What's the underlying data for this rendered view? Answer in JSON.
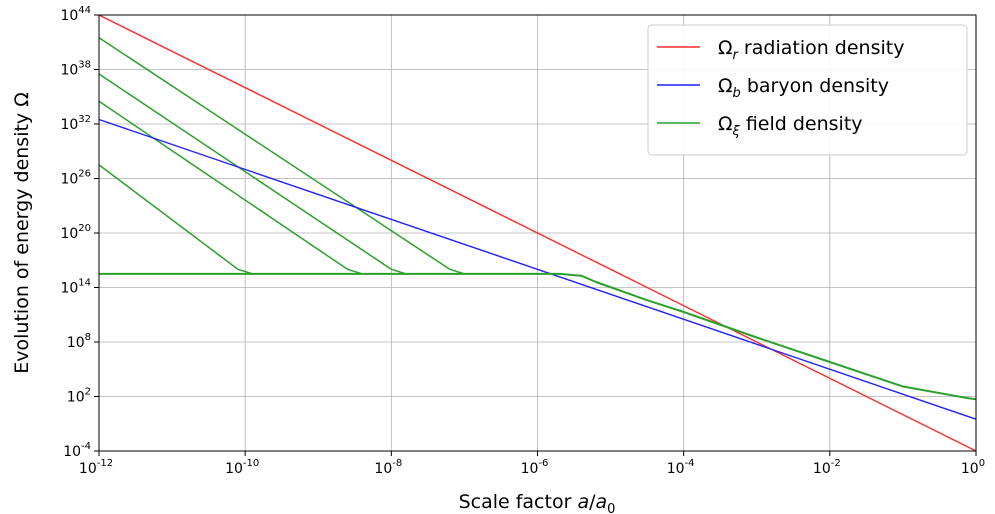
{
  "chart_data": {
    "type": "line",
    "title": "",
    "xlabel": "Scale factor a/a",
    "xlabel_base": "Scale factor ",
    "xlabel_var": "a",
    "xlabel_slash": "/",
    "xlabel_den": "a",
    "xlabel_den_sub": "0",
    "ylabel": "Evolution of energy density Ω",
    "x_scale": "log",
    "y_scale": "log",
    "xlim": [
      1e-12,
      1
    ],
    "ylim": [
      0.0001,
      1e+44
    ],
    "grid": true,
    "legend_position": "top-right",
    "x_ticks": [
      {
        "exp": "-12"
      },
      {
        "exp": "-10"
      },
      {
        "exp": "-8"
      },
      {
        "exp": "-6"
      },
      {
        "exp": "-4"
      },
      {
        "exp": "-2"
      },
      {
        "exp": "0"
      }
    ],
    "y_ticks": [
      {
        "exp": "-4"
      },
      {
        "exp": "2"
      },
      {
        "exp": "8"
      },
      {
        "exp": "14"
      },
      {
        "exp": "20"
      },
      {
        "exp": "26"
      },
      {
        "exp": "32"
      },
      {
        "exp": "38"
      },
      {
        "exp": "44"
      }
    ],
    "tick_base": "10",
    "series": [
      {
        "name_symbol": "Ω",
        "name_sub": "r",
        "name_text": " radiation density",
        "color": "#ff2a2a",
        "log10_x": [
          -12,
          0
        ],
        "log10_y": [
          44,
          -4
        ]
      },
      {
        "name_symbol": "Ω",
        "name_sub": "b",
        "name_text": " baryon density",
        "color": "#1f1fff",
        "log10_x": [
          -12,
          0
        ],
        "log10_y": [
          32.5,
          -0.5
        ]
      },
      {
        "name_symbol": "Ω",
        "name_sub": "ξ",
        "name_text": " field density",
        "color": "#2ca02c",
        "log10_x": [
          -12,
          -5.7,
          -5.4,
          -5.2,
          -4.5,
          -4,
          -3,
          -2,
          -1,
          -0.1,
          0
        ],
        "log10_y": [
          15.5,
          15.5,
          15.3,
          14.6,
          12.6,
          11.3,
          8.5,
          5.8,
          3.1,
          1.8,
          1.7
        ]
      }
    ],
    "field_transients": [
      {
        "log10_x": [
          -12,
          -10.1,
          -9.9
        ],
        "log10_y": [
          27.5,
          16.0,
          15.5
        ]
      },
      {
        "log10_x": [
          -12,
          -8.6,
          -8.4
        ],
        "log10_y": [
          34.5,
          16.0,
          15.5
        ]
      },
      {
        "log10_x": [
          -12,
          -8.0,
          -7.8
        ],
        "log10_y": [
          37.5,
          16.0,
          15.5
        ]
      },
      {
        "log10_x": [
          -12,
          -7.2,
          -7.0
        ],
        "log10_y": [
          41.5,
          16.0,
          15.5
        ]
      }
    ]
  }
}
